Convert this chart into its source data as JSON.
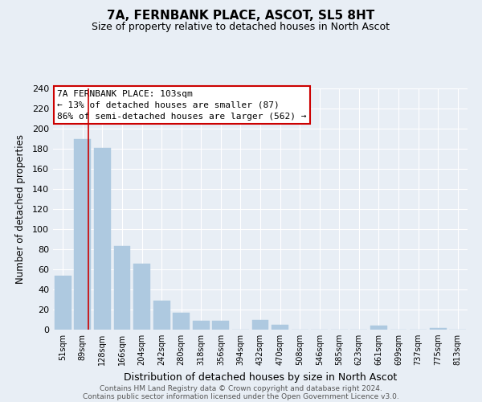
{
  "title": "7A, FERNBANK PLACE, ASCOT, SL5 8HT",
  "subtitle": "Size of property relative to detached houses in North Ascot",
  "xlabel": "Distribution of detached houses by size in North Ascot",
  "ylabel": "Number of detached properties",
  "bar_color": "#aec9e0",
  "categories": [
    "51sqm",
    "89sqm",
    "128sqm",
    "166sqm",
    "204sqm",
    "242sqm",
    "280sqm",
    "318sqm",
    "356sqm",
    "394sqm",
    "432sqm",
    "470sqm",
    "508sqm",
    "546sqm",
    "585sqm",
    "623sqm",
    "661sqm",
    "699sqm",
    "737sqm",
    "775sqm",
    "813sqm"
  ],
  "values": [
    54,
    190,
    181,
    83,
    66,
    29,
    17,
    9,
    9,
    0,
    10,
    5,
    0,
    0,
    0,
    0,
    4,
    0,
    0,
    2,
    0
  ],
  "ylim": [
    0,
    240
  ],
  "yticks": [
    0,
    20,
    40,
    60,
    80,
    100,
    120,
    140,
    160,
    180,
    200,
    220,
    240
  ],
  "marker_color": "#cc0000",
  "annotation_title": "7A FERNBANK PLACE: 103sqm",
  "annotation_line1": "← 13% of detached houses are smaller (87)",
  "annotation_line2": "86% of semi-detached houses are larger (562) →",
  "footer1": "Contains HM Land Registry data © Crown copyright and database right 2024.",
  "footer2": "Contains public sector information licensed under the Open Government Licence v3.0.",
  "bg_color": "#e8eef5",
  "plot_bg_color": "#e8eef5",
  "annotation_box_color": "#ffffff",
  "annotation_box_edge": "#cc0000",
  "grid_color": "#ffffff"
}
